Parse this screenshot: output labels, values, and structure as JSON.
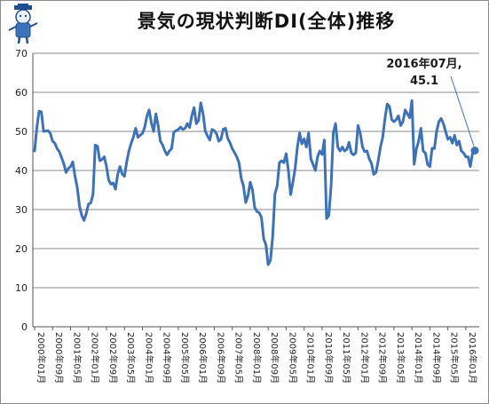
{
  "chart_data": {
    "type": "line",
    "title": "景気の現状判断DI(全体)推移",
    "xlabel": "",
    "ylabel": "",
    "ylim": [
      0,
      70
    ],
    "yticks": [
      0,
      10,
      20,
      30,
      40,
      50,
      60,
      70
    ],
    "grid": "horizontal",
    "x_tick_labels": [
      "2000年01月",
      "2000年09月",
      "2001年05月",
      "2002年01月",
      "2002年09月",
      "2003年05月",
      "2004年01月",
      "2004年09月",
      "2005年05月",
      "2006年01月",
      "2006年09月",
      "2007年05月",
      "2008年01月",
      "2008年09月",
      "2009年05月",
      "2010年01月",
      "2010年09月",
      "2011年05月",
      "2012年01月",
      "2012年09月",
      "2013年05月",
      "2014年01月",
      "2014年09月",
      "2015年05月",
      "2016年01月"
    ],
    "annotation": {
      "line1": "2016年07月,",
      "line2": "45.1"
    },
    "series": [
      {
        "color": "#3d72b8",
        "start": "2000年01月",
        "values": [
          45.0,
          51.0,
          55.2,
          55.0,
          50.0,
          50.1,
          50.2,
          49.5,
          47.5,
          47.0,
          45.6,
          44.8,
          43.3,
          41.7,
          39.5,
          40.5,
          41.0,
          42.2,
          38.5,
          35.6,
          30.8,
          28.5,
          27.2,
          29.0,
          31.4,
          31.7,
          33.8,
          46.5,
          46.2,
          42.5,
          42.8,
          43.5,
          41.0,
          37.5,
          36.5,
          36.8,
          35.2,
          39.0,
          41.0,
          39.1,
          38.5,
          42.2,
          45.0,
          47.0,
          48.6,
          50.8,
          48.5,
          49.0,
          49.5,
          51.0,
          53.9,
          55.5,
          52.1,
          50.0,
          54.5,
          51.5,
          47.5,
          46.5,
          45.0,
          44.0,
          45.0,
          45.6,
          49.8,
          50.2,
          50.5,
          51.1,
          50.5,
          50.8,
          52.0,
          51.0,
          54.0,
          56.1,
          52.0,
          52.8,
          57.3,
          54.5,
          50.0,
          48.8,
          47.8,
          50.5,
          50.2,
          49.4,
          47.5,
          48.0,
          50.6,
          50.8,
          48.2,
          47.1,
          45.6,
          44.6,
          43.5,
          42.0,
          38.0,
          36.0,
          31.8,
          33.5,
          37.0,
          35.0,
          30.5,
          29.5,
          29.2,
          28.0,
          22.5,
          21.0,
          15.9,
          17.0,
          23.0,
          34.0,
          36.0,
          42.0,
          42.5,
          42.0,
          44.3,
          40.0,
          33.8,
          37.0,
          40.5,
          46.0,
          49.6,
          46.8,
          48.1,
          46.0,
          49.6,
          43.0,
          41.5,
          40.0,
          43.5,
          45.0,
          44.1,
          47.8,
          27.7,
          28.5,
          36.0,
          49.6,
          52.0,
          46.0,
          45.0,
          46.0,
          45.0,
          45.4,
          47.2,
          44.5,
          44.0,
          44.5,
          51.5,
          49.5,
          46.0,
          44.8,
          45.0,
          43.0,
          41.8,
          39.0,
          39.5,
          42.5,
          46.0,
          48.5,
          53.3,
          57.0,
          56.4,
          53.0,
          52.5,
          53.0,
          54.0,
          51.5,
          52.5,
          55.5,
          54.5,
          53.5,
          57.9,
          41.6,
          45.5,
          47.5,
          50.8,
          45.0,
          44.5,
          41.5,
          41.0,
          45.7,
          45.6,
          50.0,
          52.5,
          53.3,
          52.0,
          50.0,
          48.0,
          48.5,
          47.0,
          49.0,
          46.5,
          47.5,
          45.0,
          44.5,
          43.5,
          43.5,
          41.0,
          44.5,
          45.1
        ]
      }
    ]
  }
}
